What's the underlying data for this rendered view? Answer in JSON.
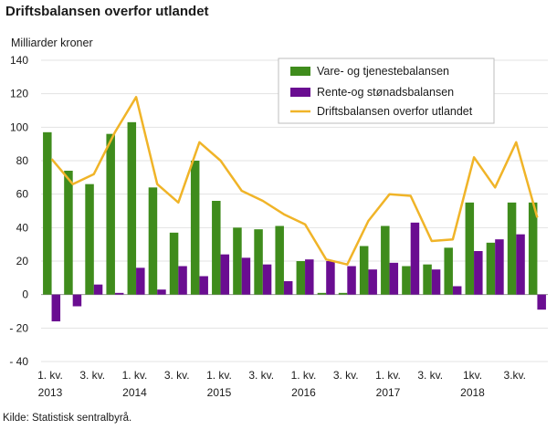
{
  "title": "Driftsbalansen overfor utlandet",
  "source": "Kilde: Statistisk sentralbyrå.",
  "chart_data": {
    "type": "bar+line",
    "title": "Driftsbalansen overfor utlandet",
    "ylabel": "Milliarder  kroner",
    "ylim": [
      -40,
      140
    ],
    "yticks": [
      -40,
      -20,
      0,
      20,
      40,
      60,
      80,
      100,
      120,
      140
    ],
    "ytick_labels": [
      "- 40",
      "- 20",
      "0",
      "20",
      "40",
      "60",
      "80",
      "100",
      "120",
      "140"
    ],
    "x_labels": [
      {
        "index": 0,
        "line1": "1. kv.",
        "line2": "2013"
      },
      {
        "index": 2,
        "line1": "3. kv.",
        "line2": ""
      },
      {
        "index": 4,
        "line1": "1. kv.",
        "line2": "2014"
      },
      {
        "index": 6,
        "line1": "3. kv.",
        "line2": ""
      },
      {
        "index": 8,
        "line1": "1. kv.",
        "line2": "2015"
      },
      {
        "index": 10,
        "line1": "3. kv.",
        "line2": ""
      },
      {
        "index": 12,
        "line1": "1. kv.",
        "line2": "2016"
      },
      {
        "index": 14,
        "line1": "3. kv.",
        "line2": ""
      },
      {
        "index": 16,
        "line1": "1. kv.",
        "line2": "2017"
      },
      {
        "index": 18,
        "line1": "3. kv.",
        "line2": ""
      },
      {
        "index": 20,
        "line1": "1kv.",
        "line2": "2018"
      },
      {
        "index": 22,
        "line1": "3.kv.",
        "line2": ""
      }
    ],
    "series": [
      {
        "name": "Vare- og tjenestebalansen",
        "kind": "bar",
        "color": "#3f8c1c",
        "values": [
          97,
          74,
          66,
          96,
          103,
          64,
          37,
          80,
          56,
          40,
          39,
          41,
          20,
          1,
          1,
          29,
          41,
          17,
          18,
          28,
          55,
          31,
          55,
          55
        ]
      },
      {
        "name": "Rente-og stønadsbalansen",
        "kind": "bar",
        "color": "#6a0d91",
        "values": [
          -16,
          -7,
          6,
          1,
          16,
          3,
          17,
          11,
          24,
          22,
          18,
          8,
          21,
          20,
          17,
          15,
          19,
          43,
          15,
          5,
          26,
          33,
          36,
          -9
        ]
      },
      {
        "name": "Driftsbalansen overfor utlandet",
        "kind": "line",
        "color": "#f0b428",
        "values": [
          81,
          66,
          72,
          97,
          118,
          66,
          55,
          91,
          80,
          62,
          56,
          48,
          42,
          21,
          18,
          44,
          60,
          59,
          32,
          33,
          82,
          64,
          91,
          46
        ]
      }
    ],
    "legend_position": "top-right",
    "grid": "horizontal"
  }
}
